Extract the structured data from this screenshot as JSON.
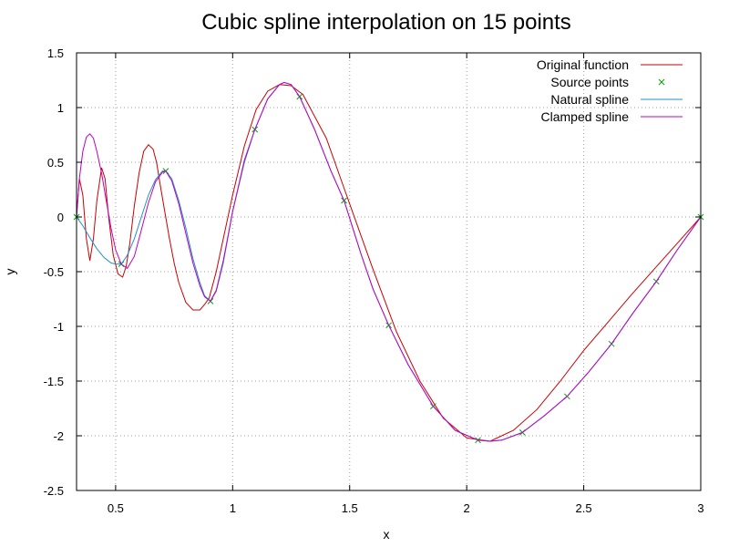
{
  "chart_data": {
    "type": "line",
    "title": "Cubic spline interpolation on 15 points",
    "xlabel": "x",
    "ylabel": "y",
    "xlim": [
      0.333,
      3.0
    ],
    "ylim": [
      -2.5,
      1.5
    ],
    "xticks": [
      {
        "value": 0.5,
        "label": "0.5"
      },
      {
        "value": 1.0,
        "label": "1"
      },
      {
        "value": 1.5,
        "label": "1.5"
      },
      {
        "value": 2.0,
        "label": "2"
      },
      {
        "value": 2.5,
        "label": "2.5"
      },
      {
        "value": 3.0,
        "label": "3"
      }
    ],
    "yticks": [
      {
        "value": 1.5,
        "label": "1.5"
      },
      {
        "value": 1.0,
        "label": "1"
      },
      {
        "value": 0.5,
        "label": "0.5"
      },
      {
        "value": 0.0,
        "label": "0"
      },
      {
        "value": -0.5,
        "label": "-0.5"
      },
      {
        "value": -1.0,
        "label": "-1"
      },
      {
        "value": -1.5,
        "label": "-1.5"
      },
      {
        "value": -2.0,
        "label": "-2"
      },
      {
        "value": -2.5,
        "label": "-2.5"
      }
    ],
    "grid": true,
    "legend_position": "top-right",
    "series": [
      {
        "name": "Original function",
        "style": "line",
        "color": "#cc0000",
        "x": [
          0.333,
          0.345,
          0.36,
          0.375,
          0.39,
          0.405,
          0.42,
          0.44,
          0.455,
          0.47,
          0.49,
          0.51,
          0.53,
          0.545,
          0.56,
          0.58,
          0.6,
          0.62,
          0.64,
          0.66,
          0.675,
          0.69,
          0.71,
          0.73,
          0.75,
          0.77,
          0.8,
          0.83,
          0.86,
          0.88,
          0.9,
          0.93,
          0.96,
          1.0,
          1.05,
          1.1,
          1.15,
          1.2,
          1.25,
          1.3,
          1.4,
          1.5,
          1.6,
          1.7,
          1.8,
          1.9,
          2.0,
          2.1,
          2.2,
          2.3,
          2.4,
          2.5,
          2.6,
          2.7,
          2.8,
          2.9,
          3.0
        ],
        "y": [
          0.0,
          0.35,
          0.2,
          -0.2,
          -0.4,
          -0.2,
          0.15,
          0.45,
          0.35,
          0.0,
          -0.35,
          -0.52,
          -0.55,
          -0.45,
          -0.25,
          0.1,
          0.4,
          0.6,
          0.66,
          0.62,
          0.5,
          0.3,
          0.05,
          -0.2,
          -0.42,
          -0.6,
          -0.78,
          -0.85,
          -0.85,
          -0.8,
          -0.74,
          -0.5,
          -0.2,
          0.2,
          0.65,
          0.98,
          1.15,
          1.21,
          1.2,
          1.12,
          0.72,
          0.12,
          -0.48,
          -1.05,
          -1.5,
          -1.84,
          -2.02,
          -2.05,
          -1.95,
          -1.76,
          -1.5,
          -1.22,
          -0.97,
          -0.72,
          -0.48,
          -0.24,
          0.0
        ]
      },
      {
        "name": "Source points",
        "style": "points",
        "color": "#00a000",
        "x": [
          0.333,
          0.524,
          0.714,
          0.905,
          1.095,
          1.286,
          1.476,
          1.667,
          1.857,
          2.048,
          2.238,
          2.429,
          2.619,
          2.81,
          3.0
        ],
        "y": [
          0.0,
          -0.43,
          0.42,
          -0.77,
          0.8,
          1.1,
          0.15,
          -0.99,
          -1.73,
          -2.04,
          -1.97,
          -1.64,
          -1.16,
          -0.59,
          0.0
        ]
      },
      {
        "name": "Natural spline",
        "style": "line",
        "color": "#1e90c8",
        "x": [
          0.333,
          0.36,
          0.39,
          0.42,
          0.45,
          0.48,
          0.5,
          0.524,
          0.55,
          0.58,
          0.61,
          0.64,
          0.67,
          0.7,
          0.714,
          0.74,
          0.77,
          0.8,
          0.83,
          0.86,
          0.88,
          0.905,
          0.93,
          0.96,
          1.0,
          1.05,
          1.095,
          1.15,
          1.2,
          1.22,
          1.25,
          1.286,
          1.35,
          1.42,
          1.476,
          1.55,
          1.6,
          1.667,
          1.75,
          1.857,
          1.95,
          2.048,
          2.1,
          2.15,
          2.238,
          2.33,
          2.429,
          2.52,
          2.619,
          2.71,
          2.81,
          2.9,
          3.0
        ],
        "y": [
          0.0,
          -0.08,
          -0.19,
          -0.29,
          -0.37,
          -0.42,
          -0.43,
          -0.43,
          -0.35,
          -0.2,
          0.0,
          0.2,
          0.34,
          0.42,
          0.42,
          0.35,
          0.15,
          -0.1,
          -0.38,
          -0.6,
          -0.72,
          -0.77,
          -0.68,
          -0.42,
          0.05,
          0.5,
          0.8,
          1.08,
          1.21,
          1.23,
          1.21,
          1.1,
          0.8,
          0.42,
          0.15,
          -0.35,
          -0.66,
          -0.99,
          -1.35,
          -1.73,
          -1.95,
          -2.04,
          -2.05,
          -2.04,
          -1.97,
          -1.82,
          -1.64,
          -1.42,
          -1.16,
          -0.88,
          -0.59,
          -0.3,
          0.0
        ]
      },
      {
        "name": "Clamped spline",
        "style": "line",
        "color": "#c000c0",
        "x": [
          0.333,
          0.345,
          0.36,
          0.375,
          0.39,
          0.405,
          0.42,
          0.44,
          0.46,
          0.48,
          0.5,
          0.524,
          0.55,
          0.58,
          0.61,
          0.64,
          0.67,
          0.7,
          0.714,
          0.74,
          0.77,
          0.8,
          0.83,
          0.86,
          0.88,
          0.905,
          0.93,
          0.96,
          1.0,
          1.05,
          1.095,
          1.15,
          1.2,
          1.22,
          1.25,
          1.286,
          1.35,
          1.42,
          1.476,
          1.55,
          1.6,
          1.667,
          1.75,
          1.857,
          1.95,
          2.048,
          2.1,
          2.15,
          2.238,
          2.33,
          2.429,
          2.52,
          2.619,
          2.71,
          2.81,
          2.9,
          3.0
        ],
        "y": [
          0.0,
          0.35,
          0.6,
          0.73,
          0.76,
          0.72,
          0.6,
          0.4,
          0.15,
          -0.1,
          -0.3,
          -0.43,
          -0.47,
          -0.36,
          -0.12,
          0.13,
          0.32,
          0.41,
          0.42,
          0.33,
          0.12,
          -0.15,
          -0.42,
          -0.63,
          -0.73,
          -0.77,
          -0.67,
          -0.4,
          0.05,
          0.52,
          0.8,
          1.08,
          1.21,
          1.23,
          1.21,
          1.1,
          0.8,
          0.42,
          0.15,
          -0.35,
          -0.66,
          -0.99,
          -1.35,
          -1.73,
          -1.95,
          -2.04,
          -2.05,
          -2.04,
          -1.97,
          -1.82,
          -1.64,
          -1.42,
          -1.16,
          -0.88,
          -0.59,
          -0.3,
          0.0
        ]
      }
    ]
  }
}
